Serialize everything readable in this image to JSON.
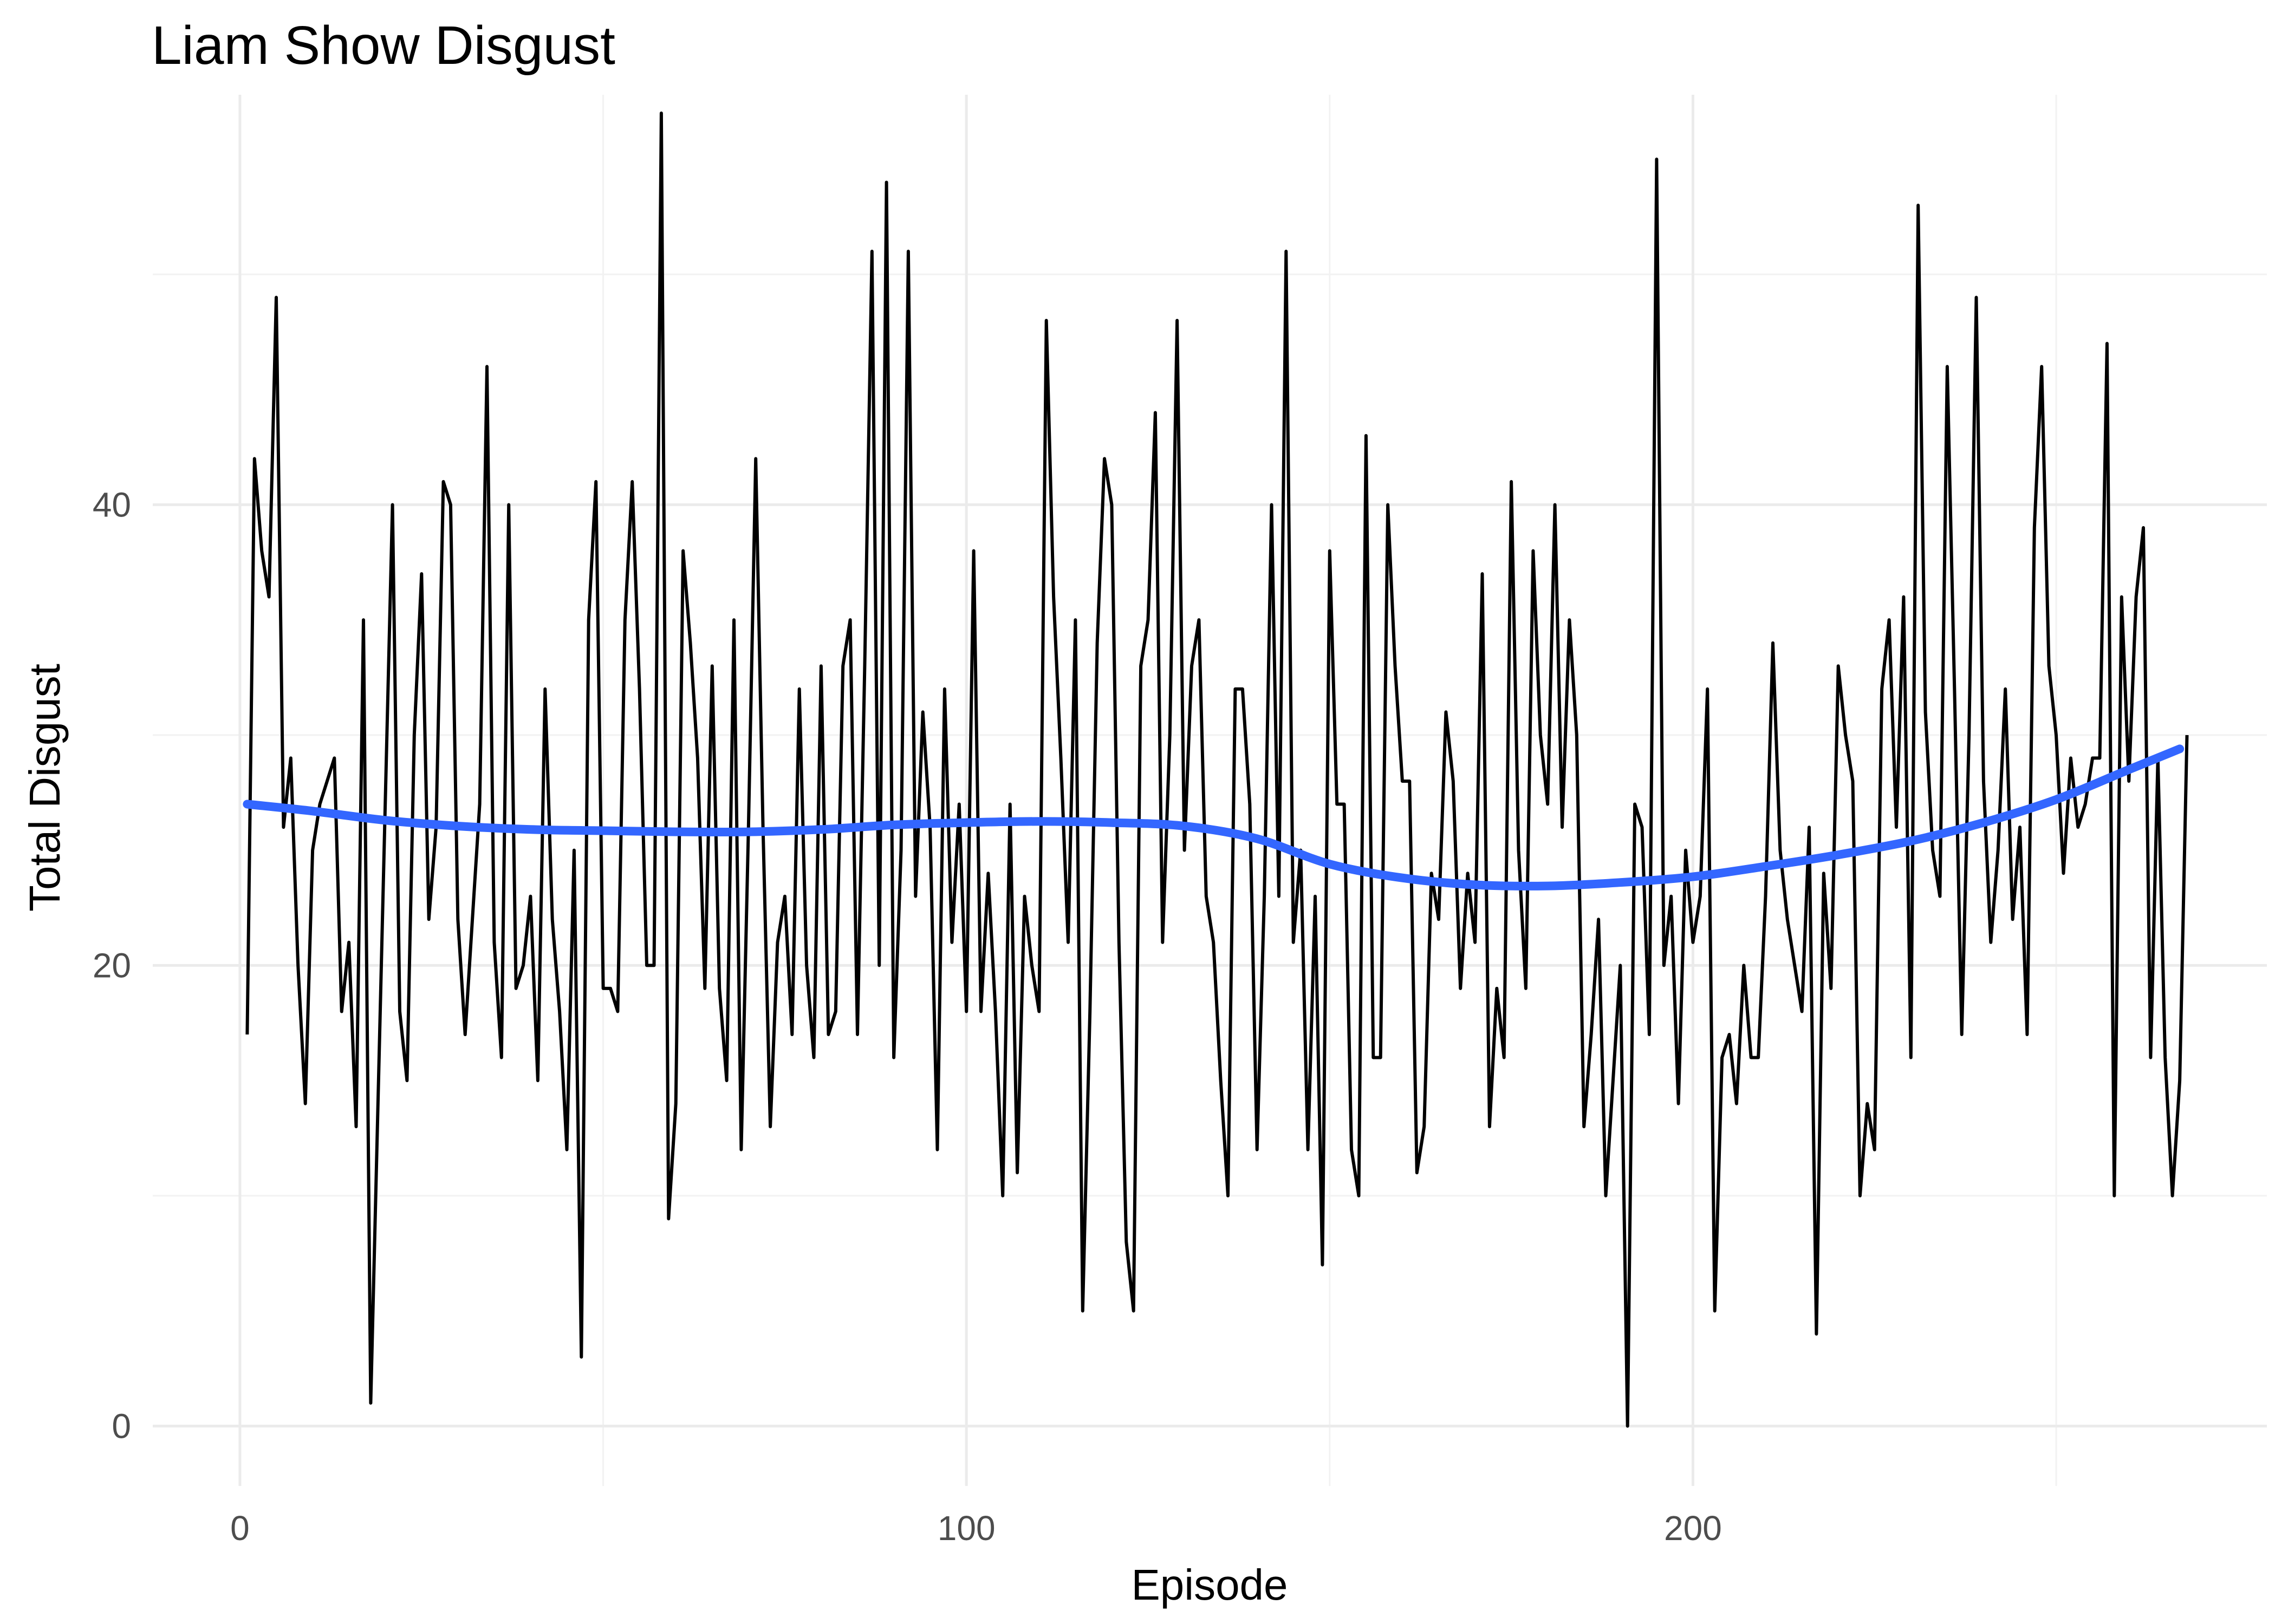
{
  "chart_data": {
    "type": "line",
    "title": "Liam Show Disgust",
    "xlabel": "Episode",
    "ylabel": "Total Disgust",
    "xlim": [
      -12,
      279
    ],
    "ylim": [
      -2.6,
      57.8
    ],
    "x_ticks": [
      0,
      100,
      200
    ],
    "x_tick_labels": [
      "0",
      "100",
      "200"
    ],
    "y_ticks": [
      0,
      20,
      40
    ],
    "y_tick_labels": [
      "0",
      "20",
      "40"
    ],
    "x_minor_ticks": [
      50,
      150,
      250
    ],
    "y_minor_ticks": [
      10,
      30,
      50
    ],
    "grid": true,
    "legend": "none",
    "colors": {
      "raw": "#000000",
      "smooth": "#3366ff",
      "grid": "#ebebeb"
    },
    "series": [
      {
        "values": [
          17,
          42,
          38,
          36,
          49,
          26,
          29,
          20,
          14,
          25,
          27,
          28,
          29,
          18,
          21,
          13,
          35,
          1,
          14,
          27,
          40,
          18,
          15,
          30,
          37,
          22,
          26,
          41,
          40,
          22,
          17,
          22,
          27,
          46,
          21,
          16,
          40,
          19,
          20,
          23,
          15,
          32,
          22,
          18,
          12,
          25,
          3,
          35,
          41,
          19,
          19,
          18,
          35,
          41,
          32,
          20,
          20,
          57,
          9,
          14,
          38,
          34,
          29,
          19,
          33,
          19,
          15,
          35,
          12,
          26,
          42,
          26,
          13,
          21,
          23,
          17,
          32,
          20,
          16,
          33,
          17,
          18,
          33,
          35,
          17,
          33,
          51,
          20,
          54,
          16,
          25,
          51,
          23,
          31,
          26,
          12,
          32,
          21,
          27,
          18,
          38,
          18,
          24,
          18,
          10,
          27,
          11,
          23,
          20,
          18,
          48,
          36,
          29,
          21,
          35,
          5,
          18,
          34,
          42,
          40,
          21,
          8,
          5,
          33,
          35,
          44,
          21,
          30,
          48,
          25,
          33,
          35,
          23,
          21,
          15,
          10,
          32,
          32,
          27,
          12,
          23,
          40,
          23,
          51,
          21,
          25,
          12,
          23,
          7,
          38,
          27,
          27,
          12,
          10,
          43,
          16,
          16,
          40,
          33,
          28,
          28,
          11,
          13,
          24,
          22,
          31,
          28,
          19,
          24,
          21,
          37,
          13,
          19,
          16,
          41,
          25,
          19,
          38,
          30,
          27,
          40,
          26,
          35,
          30,
          13,
          17,
          22,
          10,
          15,
          20,
          0,
          27,
          26,
          17,
          55,
          20,
          23,
          14,
          25,
          21,
          23,
          32,
          5,
          16,
          17,
          14,
          20,
          16,
          16,
          23,
          34,
          25,
          22,
          20,
          18,
          26,
          4,
          24,
          19,
          33,
          30,
          28,
          10,
          14,
          12,
          32,
          35,
          26,
          36,
          16,
          53,
          31,
          25,
          23,
          46,
          32,
          17,
          30,
          49,
          28,
          21,
          25,
          32,
          22,
          26,
          17,
          39,
          46,
          33,
          30,
          24,
          29,
          26,
          27,
          29,
          29,
          47,
          10,
          36,
          28,
          36,
          39,
          16,
          29,
          16,
          10,
          15,
          30
        ]
      },
      {
        "x": [
          1,
          10,
          20,
          30,
          40,
          50,
          60,
          70,
          80,
          90,
          100,
          110,
          120,
          130,
          140,
          150,
          160,
          170,
          180,
          190,
          200,
          210,
          220,
          230,
          240,
          250,
          260,
          267
        ],
        "values": [
          27.0,
          26.7,
          26.3,
          26.05,
          25.9,
          25.85,
          25.8,
          25.8,
          25.9,
          26.1,
          26.2,
          26.25,
          26.2,
          26.05,
          25.5,
          24.4,
          23.8,
          23.5,
          23.45,
          23.6,
          23.85,
          24.3,
          24.8,
          25.4,
          26.2,
          27.2,
          28.5,
          29.4
        ]
      }
    ]
  }
}
